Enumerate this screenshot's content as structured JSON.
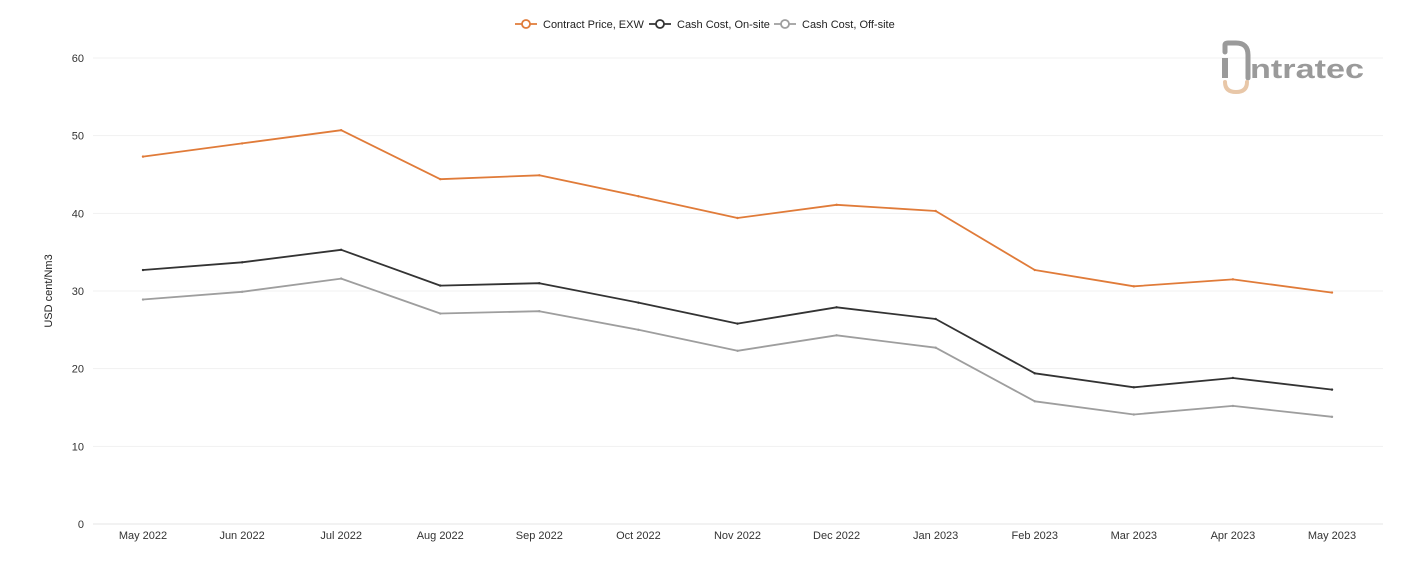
{
  "chart_data": {
    "type": "line",
    "title": "",
    "xlabel": "",
    "ylabel": "USD cent/Nm3",
    "ylim": [
      0,
      60
    ],
    "yticks": [
      "0",
      "10",
      "20",
      "30",
      "40",
      "50",
      "60"
    ],
    "grid": true,
    "legend_position": "top-center",
    "categories": [
      "May 2022",
      "Jun 2022",
      "Jul 2022",
      "Aug 2022",
      "Sep 2022",
      "Oct 2022",
      "Nov 2022",
      "Dec 2022",
      "Jan 2023",
      "Feb 2023",
      "Mar 2023",
      "Apr 2023",
      "May 2023"
    ],
    "series": [
      {
        "name": "Contract Price, EXW",
        "color": "#e07b39",
        "values": [
          47.3,
          49.0,
          50.7,
          44.4,
          44.9,
          42.2,
          39.4,
          41.1,
          40.3,
          32.7,
          30.6,
          31.5,
          29.8
        ]
      },
      {
        "name": "Cash Cost, On-site",
        "color": "#333333",
        "values": [
          32.7,
          33.7,
          35.3,
          30.7,
          31.0,
          28.5,
          25.8,
          27.9,
          26.4,
          19.4,
          17.6,
          18.8,
          17.3
        ]
      },
      {
        "name": "Cash Cost, Off-site",
        "color": "#9e9e9e",
        "values": [
          28.9,
          29.9,
          31.6,
          27.1,
          27.4,
          25.0,
          22.3,
          24.3,
          22.7,
          15.8,
          14.1,
          15.2,
          13.8
        ]
      }
    ]
  },
  "logo": {
    "text": "intratec",
    "icon": "intratec-logo-mark",
    "color": "#9a9a9a",
    "accent": "#e8c7a8"
  }
}
